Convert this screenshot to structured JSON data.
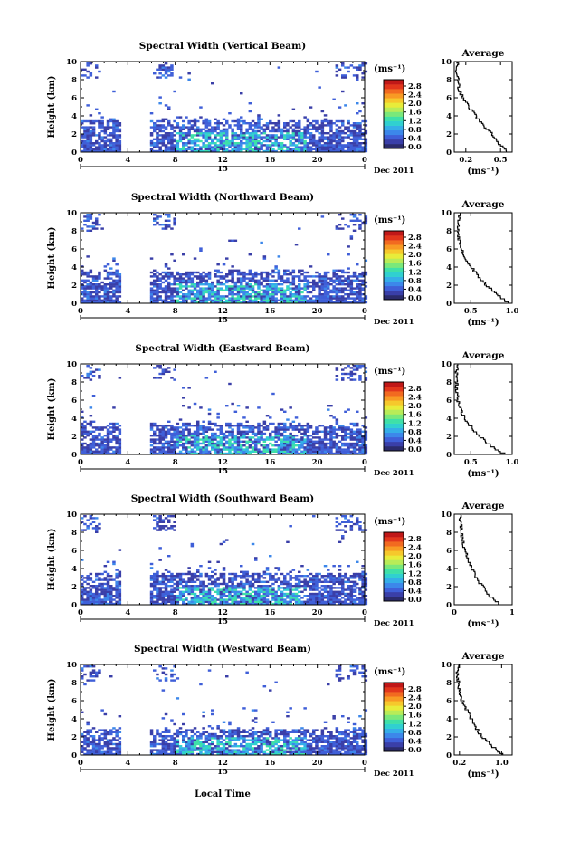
{
  "figure": {
    "xlabel": "Local Time",
    "date_label": "Dec 2011",
    "day_label": "15"
  },
  "colorbar": {
    "unit": "(ms⁻¹)",
    "ticks": [
      "2.8",
      "2.4",
      "2.0",
      "1.6",
      "1.2",
      "0.8",
      "0.4",
      "0.0"
    ],
    "colors": [
      "#2b2b6b",
      "#3a3fa8",
      "#3f5fd8",
      "#3c87ea",
      "#35aee8",
      "#30d0d0",
      "#3fe0a8",
      "#7ae87a",
      "#b8ec58",
      "#e8ec3a",
      "#f6c82c",
      "#f89a24",
      "#f26a20",
      "#e2361c",
      "#c01818"
    ]
  },
  "chart_data": [
    {
      "type": "heatmap",
      "title": "Spectral Width (Vertical Beam)",
      "ylabel": "Height (km)",
      "xlim": [
        0,
        24
      ],
      "ylim": [
        0,
        10
      ],
      "xticks": [
        "0",
        "4",
        "8",
        "12",
        "16",
        "20",
        "0"
      ],
      "yticks": [
        "0",
        "2",
        "4",
        "6",
        "8",
        "10"
      ],
      "gaps": [
        [
          3.4,
          5.8
        ]
      ],
      "bulk_top_km": [
        3.5,
        3.8
      ],
      "profile": {
        "title": "Average",
        "xlabel": "(ms⁻¹)",
        "xlim": [
          0.1,
          0.6
        ],
        "xticks": [
          "0.2",
          "0.5"
        ],
        "height_km": [
          0,
          1,
          2,
          3,
          4,
          5,
          6,
          7,
          8,
          9,
          10
        ],
        "value_ms": [
          0.55,
          0.47,
          0.42,
          0.34,
          0.28,
          0.22,
          0.17,
          0.14,
          0.14,
          0.12,
          0.13
        ]
      }
    },
    {
      "type": "heatmap",
      "title": "Spectral Width (Northward Beam)",
      "ylabel": "Height (km)",
      "xlim": [
        0,
        24
      ],
      "ylim": [
        0,
        10
      ],
      "xticks": [
        "0",
        "4",
        "8",
        "12",
        "16",
        "20",
        "0"
      ],
      "yticks": [
        "0",
        "2",
        "4",
        "6",
        "8",
        "10"
      ],
      "gaps": [
        [
          3.4,
          5.8
        ]
      ],
      "bulk_top_km": [
        3.6,
        3.8
      ],
      "profile": {
        "title": "Average",
        "xlabel": "(ms⁻¹)",
        "xlim": [
          0.3,
          1.0
        ],
        "xticks": [
          "0.5",
          "1.0"
        ],
        "height_km": [
          0,
          1,
          2,
          3,
          4,
          5,
          6,
          7,
          8,
          9,
          10
        ],
        "value_ms": [
          0.95,
          0.8,
          0.68,
          0.58,
          0.5,
          0.43,
          0.38,
          0.36,
          0.35,
          0.36,
          0.36
        ]
      }
    },
    {
      "type": "heatmap",
      "title": "Spectral Width (Eastward Beam)",
      "ylabel": "Height (km)",
      "xlim": [
        0,
        24
      ],
      "ylim": [
        0,
        10
      ],
      "xticks": [
        "0",
        "4",
        "8",
        "12",
        "16",
        "20",
        "0"
      ],
      "yticks": [
        "0",
        "2",
        "4",
        "6",
        "8",
        "10"
      ],
      "gaps": [
        [
          3.4,
          5.8
        ]
      ],
      "bulk_top_km": [
        3.4,
        3.8
      ],
      "profile": {
        "title": "Average",
        "xlabel": "(ms⁻¹)",
        "xlim": [
          0.3,
          1.0
        ],
        "xticks": [
          "0.5",
          "1.0"
        ],
        "height_km": [
          0,
          1,
          2,
          3,
          4,
          5,
          6,
          7,
          8,
          9,
          10
        ],
        "value_ms": [
          0.9,
          0.72,
          0.6,
          0.5,
          0.42,
          0.37,
          0.34,
          0.33,
          0.33,
          0.33,
          0.33
        ]
      }
    },
    {
      "type": "heatmap",
      "title": "Spectral Width (Southward Beam)",
      "ylabel": "Height (km)",
      "xlim": [
        0,
        24
      ],
      "ylim": [
        0,
        10
      ],
      "xticks": [
        "0",
        "4",
        "8",
        "12",
        "16",
        "20",
        "0"
      ],
      "yticks": [
        "0",
        "2",
        "4",
        "6",
        "8",
        "10"
      ],
      "gaps": [
        [
          3.4,
          5.8
        ]
      ],
      "bulk_top_km": [
        3.5,
        3.8
      ],
      "profile": {
        "title": "Average",
        "xlabel": "(ms⁻¹)",
        "xlim": [
          0,
          1
        ],
        "xticks": [
          "0",
          "1"
        ],
        "height_km": [
          0,
          1,
          2,
          3,
          4,
          5,
          6,
          7,
          8,
          9,
          10
        ],
        "value_ms": [
          0.78,
          0.6,
          0.48,
          0.38,
          0.3,
          0.24,
          0.18,
          0.14,
          0.12,
          0.11,
          0.1
        ]
      }
    },
    {
      "type": "heatmap",
      "title": "Spectral Width (Westward Beam)",
      "ylabel": "Height (km)",
      "xlim": [
        0,
        24
      ],
      "ylim": [
        0,
        10
      ],
      "xticks": [
        "0",
        "4",
        "8",
        "12",
        "16",
        "20",
        "0"
      ],
      "yticks": [
        "0",
        "2",
        "4",
        "6",
        "8",
        "10"
      ],
      "gaps": [
        [
          3.4,
          5.8
        ]
      ],
      "bulk_top_km": [
        2.8,
        3.2
      ],
      "profile": {
        "title": "Average",
        "xlabel": "(ms⁻¹)",
        "xlim": [
          0.1,
          1.2
        ],
        "xticks": [
          "0.2",
          "1.0"
        ],
        "height_km": [
          0,
          1,
          2,
          3,
          4,
          5,
          6,
          7,
          8,
          9,
          10
        ],
        "value_ms": [
          1.0,
          0.8,
          0.62,
          0.5,
          0.42,
          0.33,
          0.25,
          0.2,
          0.18,
          0.16,
          0.18
        ]
      }
    }
  ]
}
